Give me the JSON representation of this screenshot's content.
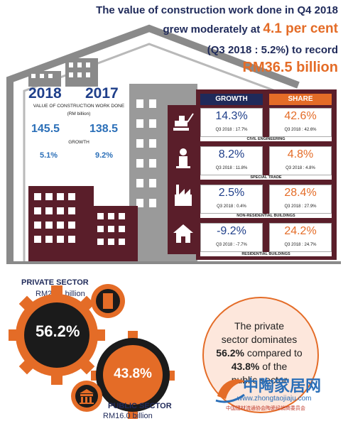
{
  "colors": {
    "navy": "#1f2a5a",
    "blue": "#2b6fb8",
    "orange": "#e46c27",
    "maroon": "#5a1e2a",
    "gray": "#8a8a8a"
  },
  "headline": {
    "line1": "The value of construction work done in Q4 2018",
    "line2_prefix": "grew moderately at ",
    "line2_highlight": "4.1 per cent",
    "line3": "(Q3 2018 : 5.2%) to record",
    "line4": "RM36.5 billion"
  },
  "comparison": {
    "year_a": "2018",
    "year_b": "2017",
    "value_label": "VALUE OF CONSTRUCTION WORK DONE",
    "value_unit": "(RM billion)",
    "value_a": "145.5",
    "value_b": "138.5",
    "growth_label": "GROWTH",
    "growth_a": "5.1%",
    "growth_b": "9.2%"
  },
  "table": {
    "growth_header": "GROWTH",
    "share_header": "SHARE",
    "rows": [
      {
        "icon": "excavator-icon",
        "growth": "14.3%",
        "growth_q3": "Q3 2018 : 17.7%",
        "share": "42.6%",
        "share_q3": "Q3 2018 : 42.6%",
        "category": "CIVIL ENGINEERING"
      },
      {
        "icon": "worker-icon",
        "growth": "8.2%",
        "growth_q3": "Q3 2018 : 11.8%",
        "share": "4.8%",
        "share_q3": "Q3 2018 : 4.8%",
        "category": "SPECIAL TRADE"
      },
      {
        "icon": "factory-icon",
        "growth": "2.5%",
        "growth_q3": "Q3 2018 : 0.4%",
        "share": "28.4%",
        "share_q3": "Q3 2018 : 27.9%",
        "category": "NON-RESIDENTIAL BUILDINGS"
      },
      {
        "icon": "house-icon",
        "growth": "-9.2%",
        "growth_q3": "Q3 2018 : -7.7%",
        "share": "24.2%",
        "share_q3": "Q3 2018 : 24.7%",
        "category": "RESIDENTIAL BUILDINGS"
      }
    ]
  },
  "sectors": {
    "private_label": "PRIVATE SECTOR",
    "private_value": "RM20.5 billion",
    "private_share": "56.2%",
    "public_share": "43.8%",
    "public_label": "PUBLIC SECTOR",
    "public_value": "RM16.0 billion"
  },
  "bubble": {
    "line1": "The private",
    "line2": "sector dominates",
    "line3_bold": "56.2%",
    "line3_rest": " compared to",
    "line4_bold": "43.8%",
    "line4_rest": " of the",
    "line5": "public sector"
  },
  "watermark": {
    "brand": "中陶家居网",
    "url": "www.zhongtaojiaju.com",
    "tagline": "中国建材流通协会陶瓷经销商委员会"
  }
}
